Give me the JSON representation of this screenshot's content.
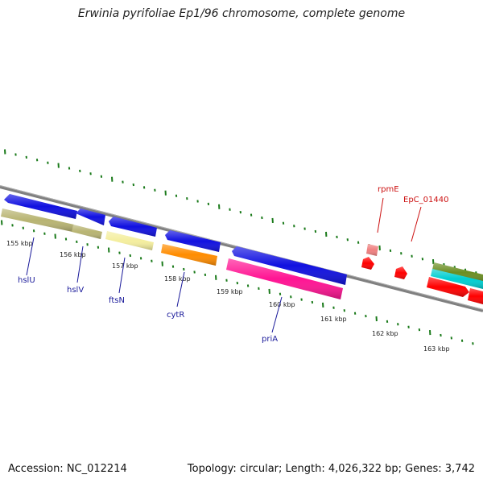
{
  "title": "Erwinia pyrifoliae Ep1/96 chromosome, complete genome",
  "footer": {
    "accession": "Accession: NC_012214",
    "summary": "Topology: circular; Length: 4,026,322 bp; Genes: 3,742"
  },
  "colors": {
    "backbone": "#808080",
    "ticks": "#1a7a1a",
    "label_blue": "#1a1a9a",
    "label_red": "#cc1111"
  },
  "scale_labels": [
    "155 kbp",
    "156 kbp",
    "157 kbp",
    "158 kbp",
    "159 kbp",
    "160 kbp",
    "161 kbp",
    "162 kbp",
    "163 kbp"
  ],
  "genes": [
    {
      "label": "hslU",
      "color": "#1010e0"
    },
    {
      "label": "",
      "color": "#b8b472"
    },
    {
      "label": "hslV",
      "color": "#1010e0"
    },
    {
      "label": "",
      "color": "#b8b472"
    },
    {
      "label": "ftsN",
      "color": "#1010e0"
    },
    {
      "label": "",
      "color": "#f4ee9e"
    },
    {
      "label": "cytR",
      "color": "#1010e0"
    },
    {
      "label": "",
      "color": "#ff8c00"
    },
    {
      "label": "priA",
      "color": "#1010e0"
    },
    {
      "label": "",
      "color": "#ff1493"
    },
    {
      "label": "rpmE",
      "color": "#f08080"
    },
    {
      "label": "",
      "color": "#ff0000"
    },
    {
      "label": "EpC_01440",
      "color": "#ff0000"
    },
    {
      "label": "",
      "color": "#6b8e23"
    },
    {
      "label": "",
      "color": "#00ced1"
    },
    {
      "label": "",
      "color": "#ff0000"
    },
    {
      "label": "",
      "color": "#ff0000"
    }
  ]
}
